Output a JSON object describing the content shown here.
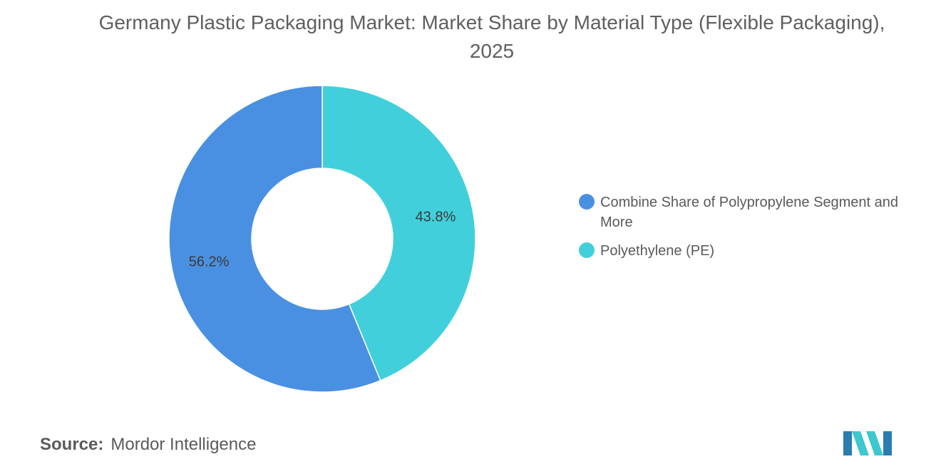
{
  "chart_data": {
    "type": "pie",
    "title": "Germany Plastic Packaging Market: Market Share by Material Type (Flexible Packaging), 2025",
    "donut": true,
    "slices": [
      {
        "name": "Combine Share of Polypropylene Segment and More",
        "value": 56.2,
        "label": "56.2%",
        "color": "#4a90e2"
      },
      {
        "name": "Polyethylene (PE)",
        "value": 43.8,
        "label": "43.8%",
        "color": "#41d0db"
      }
    ],
    "legend_position": "right"
  },
  "source": {
    "label": "Source:",
    "value": "Mordor Intelligence"
  },
  "logo_colors": {
    "dark": "#2a7dae",
    "light": "#3fc7cf"
  }
}
